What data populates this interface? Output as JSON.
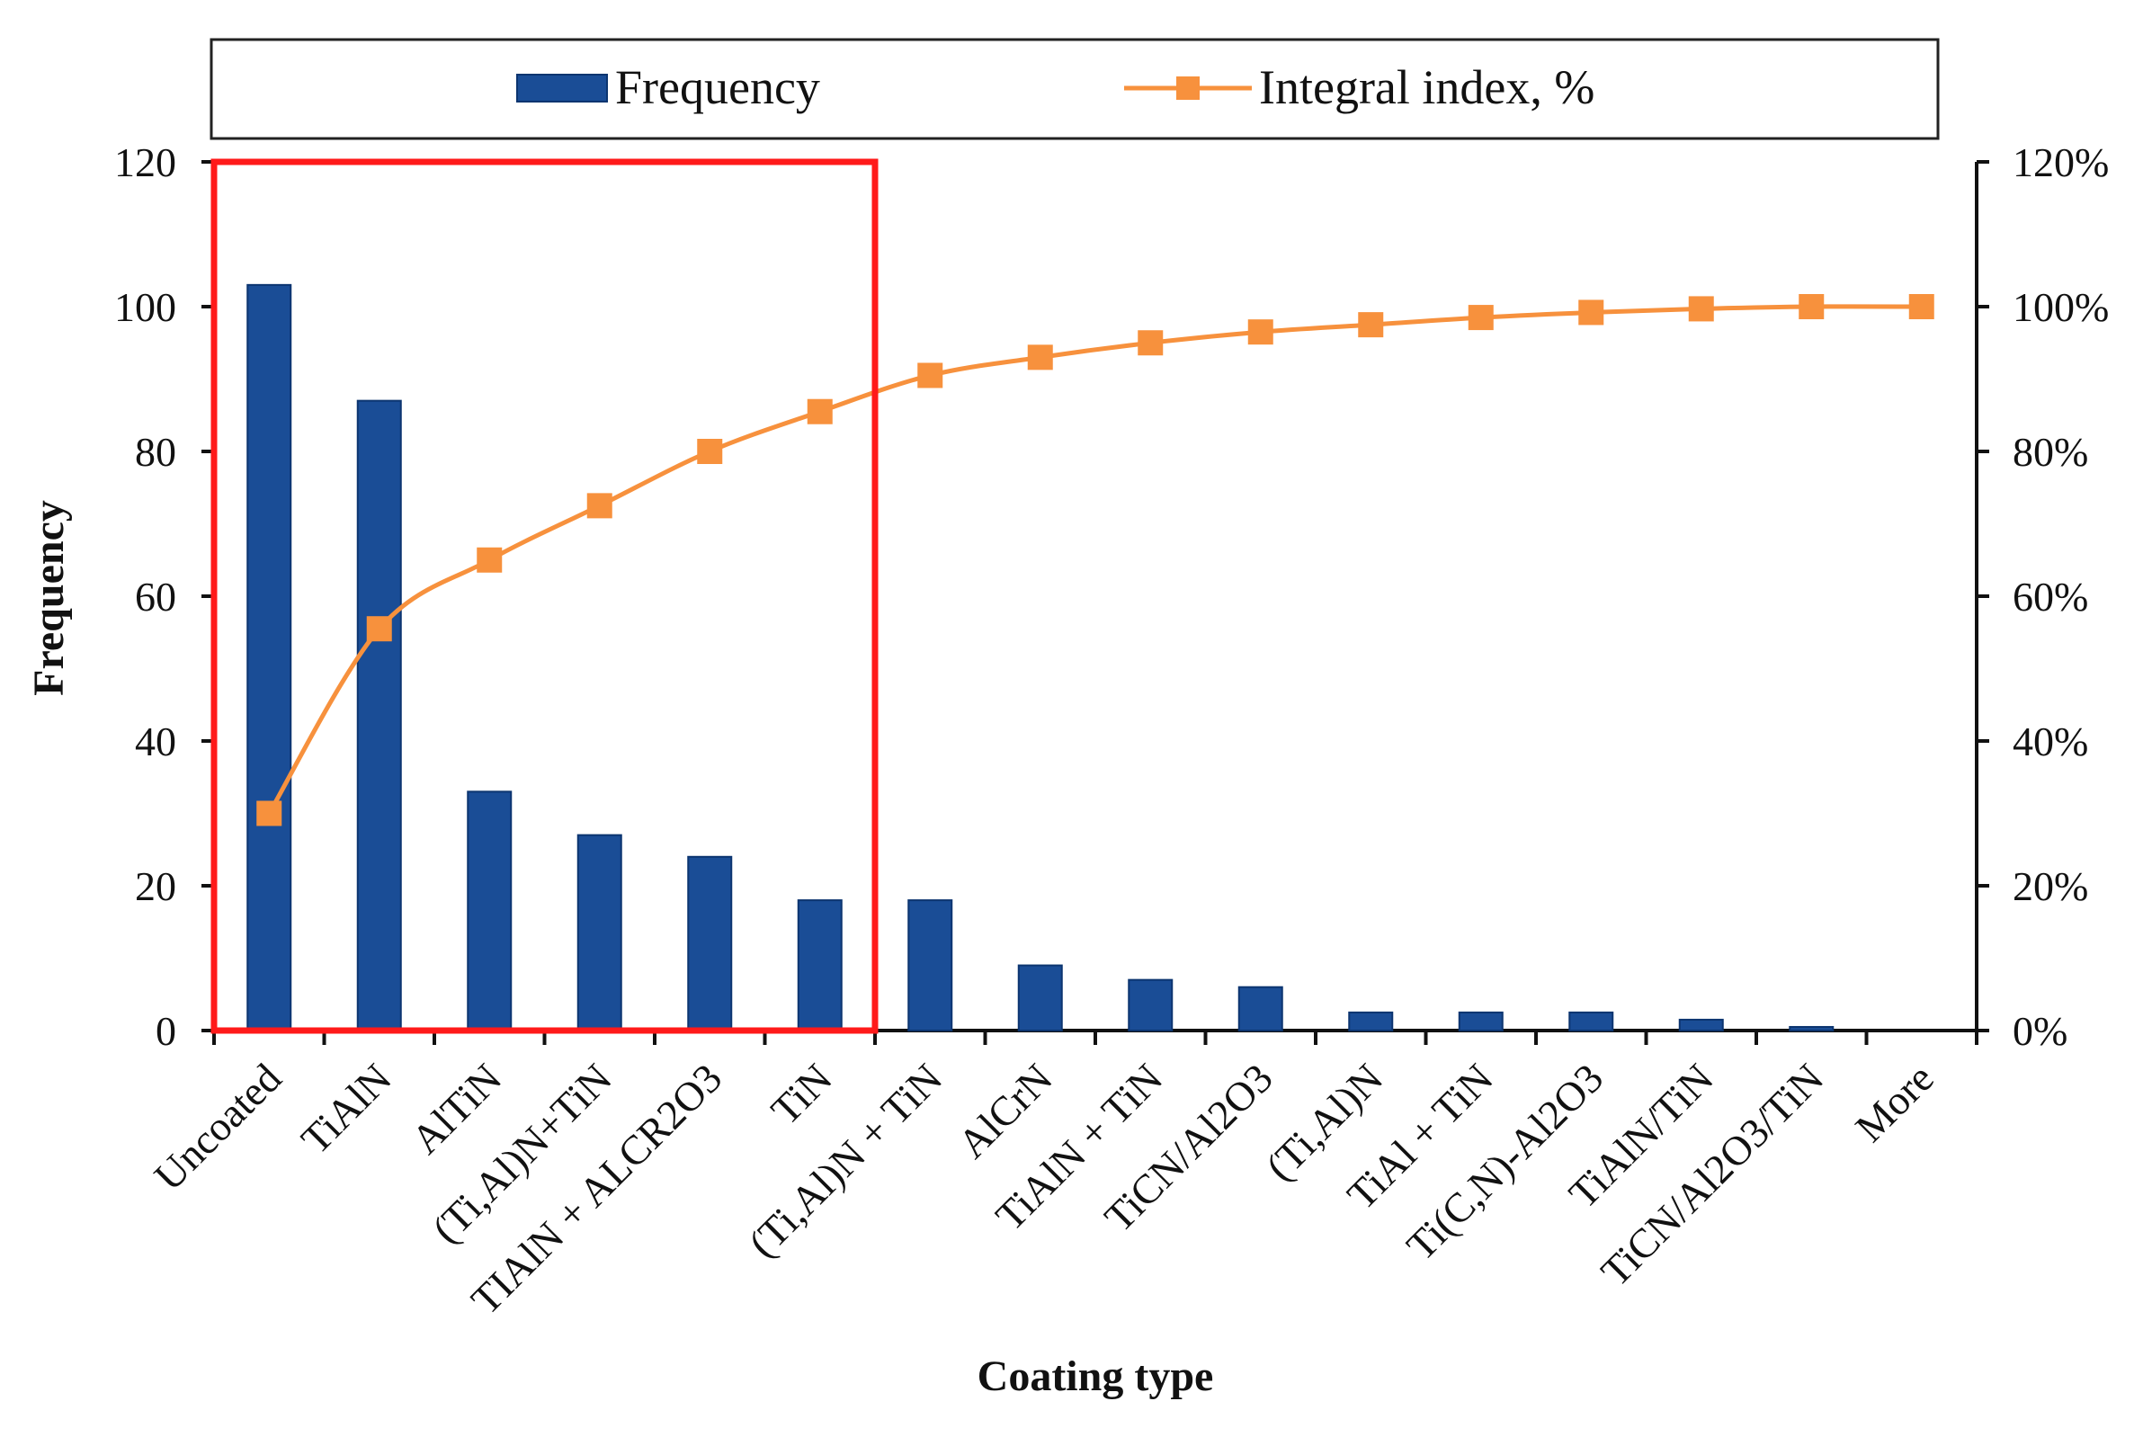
{
  "chart_data": {
    "type": "bar",
    "xlabel": "Coating type",
    "ylabel": "Frequency",
    "categories": [
      "Uncoated",
      "TiAlN",
      "AlTiN",
      "(Ti,Al)N+TiN",
      "TIAlN + ALCR2O3",
      "TiN",
      "(Ti,Al)N + TiN",
      "AlCrN",
      "TiAlN + TiN",
      "TiCN/Al2O3",
      "(Ti,Al)N",
      "TiAl + TiN",
      "Ti(C,N)-Al2O3",
      "TiAlN/TiN",
      "TiCN/Al2O3/TiN",
      "More"
    ],
    "series": [
      {
        "name": "Frequency",
        "type": "bar",
        "axis": "left",
        "color": "#1a4d96",
        "values": [
          103,
          87,
          33,
          27,
          24,
          18,
          18,
          9,
          7,
          6,
          2.5,
          2.5,
          2.5,
          1.5,
          0.5,
          0
        ]
      },
      {
        "name": "Integral index, %",
        "type": "line",
        "axis": "right",
        "color": "#f7913d",
        "marker": "square",
        "values": [
          30,
          55.5,
          65,
          72.5,
          80,
          85.5,
          90.5,
          93,
          95,
          96.5,
          97.5,
          98.5,
          99.2,
          99.7,
          100,
          100
        ]
      }
    ],
    "y_left": {
      "ylim": [
        0,
        120
      ],
      "ticks": [
        "0",
        "20",
        "40",
        "60",
        "80",
        "100",
        "120"
      ]
    },
    "y_right": {
      "ylim": [
        0,
        120
      ],
      "ticks": [
        "0%",
        "20%",
        "40%",
        "60%",
        "80%",
        "100%",
        "120%"
      ]
    },
    "legend_position": "top",
    "grid": false,
    "highlight": {
      "color": "#ff1a1a",
      "from_category": 0,
      "to_category": 5,
      "from_value": 0,
      "to_value": 120
    }
  }
}
